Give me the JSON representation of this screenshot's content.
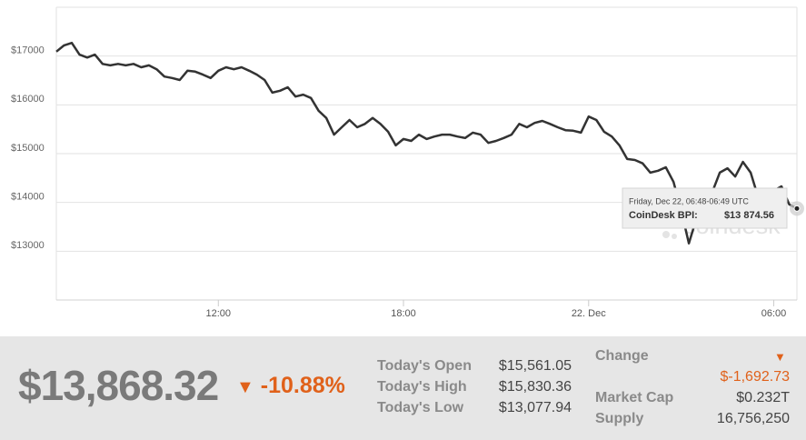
{
  "chart_data": {
    "type": "line",
    "categories": [
      null,
      null,
      null,
      null,
      null,
      null,
      null,
      null,
      null,
      null,
      null,
      null,
      null,
      null,
      null,
      null,
      null,
      null,
      null,
      null,
      null,
      "12:00",
      null,
      null,
      null,
      null,
      null,
      null,
      null,
      null,
      null,
      null,
      null,
      null,
      null,
      null,
      null,
      null,
      null,
      null,
      null,
      null,
      null,
      null,
      null,
      "18:00",
      null,
      null,
      null,
      null,
      null,
      null,
      null,
      null,
      null,
      null,
      null,
      null,
      null,
      null,
      null,
      null,
      null,
      null,
      null,
      null,
      null,
      null,
      null,
      "22. Dec",
      null,
      null,
      null,
      null,
      null,
      null,
      null,
      null,
      null,
      null,
      null,
      null,
      null,
      null,
      null,
      null,
      null,
      null,
      null,
      null,
      null,
      null,
      null,
      "06:00",
      null,
      null,
      null
    ],
    "series": [
      {
        "name": "CoinDesk BPI",
        "color": "#333333",
        "values": [
          17090,
          17220,
          17270,
          17030,
          16970,
          17030,
          16840,
          16810,
          16840,
          16810,
          16840,
          16770,
          16810,
          16730,
          16580,
          16550,
          16510,
          16700,
          16680,
          16620,
          16550,
          16700,
          16770,
          16730,
          16770,
          16700,
          16620,
          16510,
          16250,
          16290,
          16360,
          16170,
          16210,
          16140,
          15880,
          15730,
          15390,
          15540,
          15690,
          15540,
          15610,
          15730,
          15610,
          15450,
          15170,
          15300,
          15260,
          15390,
          15300,
          15350,
          15390,
          15390,
          15350,
          15320,
          15430,
          15390,
          15220,
          15260,
          15320,
          15390,
          15610,
          15540,
          15630,
          15670,
          15610,
          15540,
          15480,
          15470,
          15430,
          15760,
          15690,
          15450,
          15350,
          15170,
          14890,
          14870,
          14800,
          14610,
          14650,
          14720,
          14420,
          13830,
          13160,
          13680,
          13900,
          14200,
          14610,
          14700,
          14530,
          14830,
          14610,
          14090,
          14010,
          14240,
          14330,
          13960,
          13874.56
        ]
      }
    ],
    "ylim": [
      12000,
      18000
    ],
    "yticks": [
      {
        "value": 13000,
        "label": "$13000"
      },
      {
        "value": 14000,
        "label": "$14000"
      },
      {
        "value": 15000,
        "label": "$15000"
      },
      {
        "value": 16000,
        "label": "$16000"
      },
      {
        "value": 17000,
        "label": "$17000"
      }
    ],
    "grid": true,
    "watermark": "coindesk",
    "tooltip": {
      "date": "Friday, Dec 22, 06:48-06:49 UTC",
      "label": "CoinDesk BPI:",
      "value": "$13 874.56"
    }
  },
  "stats": {
    "price": "$13,868.32",
    "change_percent": "-10.88%",
    "rows": [
      [
        "Today's Open",
        "$15,561.05"
      ],
      [
        "Today's High",
        "$15,830.36"
      ],
      [
        "Today's Low",
        "$13,077.94"
      ]
    ],
    "change_label": "Change",
    "change_value": "$-1,692.73",
    "market_cap_label": "Market Cap",
    "market_cap": "$0.232T",
    "supply_label": "Supply",
    "supply": "16,756,250"
  }
}
